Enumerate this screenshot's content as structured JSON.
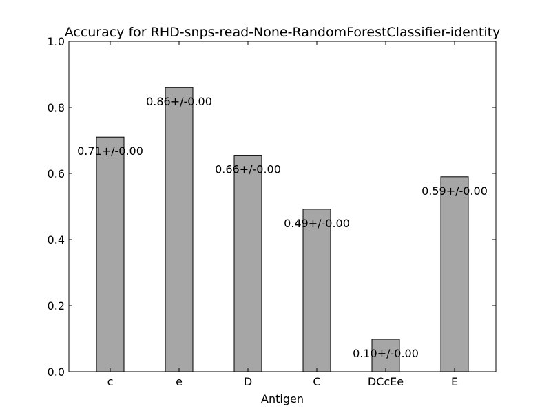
{
  "chart_data": {
    "type": "bar",
    "title": "Accuracy for RHD-snps-read-None-RandomForestClassifier-identity",
    "xlabel": "Antigen",
    "ylabel": "",
    "ylim": [
      0,
      1.0
    ],
    "yticks": [
      "0.0",
      "0.2",
      "0.4",
      "0.6",
      "0.8",
      "1.0"
    ],
    "ytick_values": [
      0,
      0.2,
      0.4,
      0.6,
      0.8,
      1.0
    ],
    "categories": [
      "c",
      "e",
      "D",
      "C",
      "DCcEe",
      "E"
    ],
    "values": [
      0.71,
      0.86,
      0.655,
      0.492,
      0.098,
      0.59
    ],
    "data_labels": [
      "0.71+/-0.00",
      "0.86+/-0.00",
      "0.66+/-0.00",
      "0.49+/-0.00",
      "0.10+/-0.00",
      "0.59+/-0.00"
    ],
    "grid": false,
    "bar_color": "#a6a6a6",
    "edge_color": "#000000"
  }
}
